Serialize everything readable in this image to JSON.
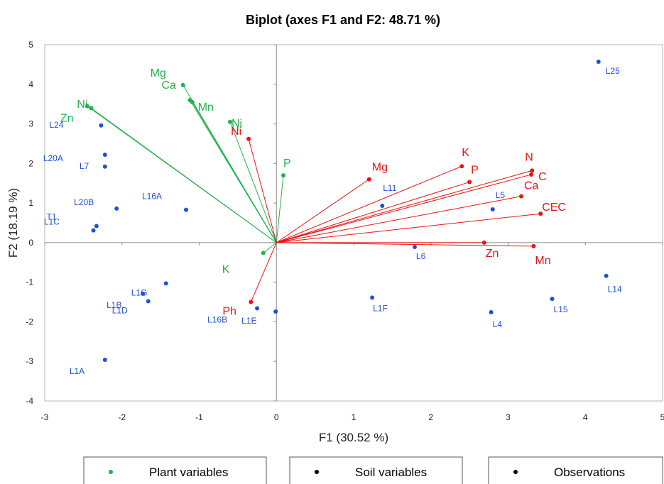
{
  "chart_data": {
    "type": "scatter",
    "title": "Biplot (axes F1 and F2: 48.71 %)",
    "xlabel": "F1 (30.52 %)",
    "ylabel": "F2 (18.19 %)",
    "xlim": [
      -3,
      5
    ],
    "ylim": [
      -4,
      5
    ],
    "xticks": [
      "-3",
      "-2",
      "-1",
      "0",
      "1",
      "2",
      "3",
      "4",
      "5"
    ],
    "yticks": [
      "-4",
      "-3",
      "-2",
      "-1",
      "0",
      "1",
      "2",
      "3",
      "4",
      "5"
    ],
    "grid": false,
    "legend_position": "bottom",
    "colors": {
      "plant": "#22b14c",
      "soil": "#ee1111",
      "observations": "#1f4fd8"
    },
    "series": [
      {
        "name": "Plant variables",
        "role": "plant",
        "points": [
          {
            "label": "Mg",
            "x": -1.21,
            "y": 3.98
          },
          {
            "label": "Ca",
            "x": -1.12,
            "y": 3.6
          },
          {
            "label": "Mn",
            "x": -1.09,
            "y": 3.55
          },
          {
            "label": "Zn",
            "x": -2.45,
            "y": 3.45
          },
          {
            "label": "Ni",
            "x": -2.4,
            "y": 3.4
          },
          {
            "label": "Ni",
            "x": -0.6,
            "y": 3.05
          },
          {
            "label": "P",
            "x": 0.09,
            "y": 1.7
          },
          {
            "label": "K",
            "x": -0.17,
            "y": -0.26
          }
        ]
      },
      {
        "name": "Soil variables",
        "role": "soil",
        "points": [
          {
            "label": "Ni",
            "x": -0.36,
            "y": 2.62
          },
          {
            "label": "Mg",
            "x": 1.2,
            "y": 1.6
          },
          {
            "label": "K",
            "x": 2.4,
            "y": 1.93
          },
          {
            "label": "P",
            "x": 2.5,
            "y": 1.53
          },
          {
            "label": "N",
            "x": 3.31,
            "y": 1.82
          },
          {
            "label": "C",
            "x": 3.3,
            "y": 1.72
          },
          {
            "label": "Ca",
            "x": 3.17,
            "y": 1.17
          },
          {
            "label": "CEC",
            "x": 3.42,
            "y": 0.73
          },
          {
            "label": "Zn",
            "x": 2.69,
            "y": 0.0
          },
          {
            "label": "Mn",
            "x": 3.33,
            "y": -0.09
          },
          {
            "label": "Ph",
            "x": -0.33,
            "y": -1.5
          }
        ]
      },
      {
        "name": "Observations",
        "role": "observations",
        "points": [
          {
            "label": "L25",
            "x": 4.17,
            "y": 4.57
          },
          {
            "label": "L24",
            "x": -2.27,
            "y": 2.96
          },
          {
            "label": "L20A",
            "x": -2.22,
            "y": 2.22
          },
          {
            "label": "L7",
            "x": -2.22,
            "y": 1.92
          },
          {
            "label": "L20B",
            "x": -2.07,
            "y": 0.86
          },
          {
            "label": "L16A",
            "x": -1.17,
            "y": 0.83
          },
          {
            "label": "L1C",
            "x": -2.33,
            "y": 0.42
          },
          {
            "label": "T1",
            "x": -2.37,
            "y": 0.31
          },
          {
            "label": "L11",
            "x": 1.37,
            "y": 0.93
          },
          {
            "label": "L5",
            "x": 2.8,
            "y": 0.84
          },
          {
            "label": "L6",
            "x": 1.79,
            "y": -0.11
          },
          {
            "label": "L1G",
            "x": -1.43,
            "y": -1.03
          },
          {
            "label": "L1B",
            "x": -1.73,
            "y": -1.29
          },
          {
            "label": "L1D",
            "x": -1.66,
            "y": -1.48
          },
          {
            "label": "L16B",
            "x": -0.25,
            "y": -1.66
          },
          {
            "label": "L1E",
            "x": -0.01,
            "y": -1.74
          },
          {
            "label": "L1F",
            "x": 1.24,
            "y": -1.39
          },
          {
            "label": "L4",
            "x": 2.78,
            "y": -1.76
          },
          {
            "label": "L15",
            "x": 3.57,
            "y": -1.42
          },
          {
            "label": "L14",
            "x": 4.27,
            "y": -0.84
          },
          {
            "label": "L1A",
            "x": -2.22,
            "y": -2.96
          }
        ]
      }
    ],
    "legend": [
      {
        "label": "Plant variables",
        "role": "plant"
      },
      {
        "label": "Soil variables",
        "role": "soil"
      },
      {
        "label": "Observations",
        "role": "observations"
      }
    ]
  }
}
